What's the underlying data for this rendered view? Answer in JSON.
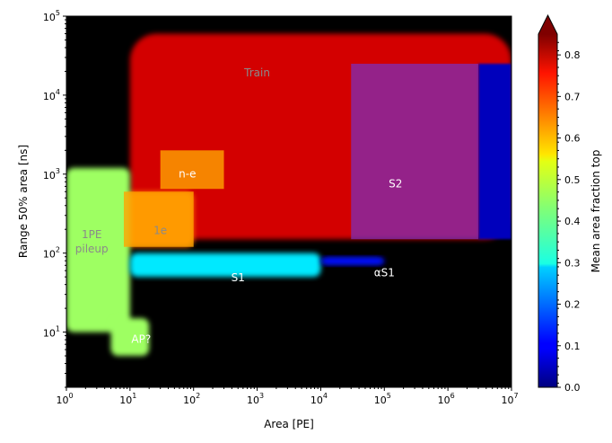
{
  "chart_data": {
    "type": "heatmap",
    "title": "",
    "xlabel": "Area [PE]",
    "ylabel": "Range 50% area [ns]",
    "xscale": "log",
    "yscale": "log",
    "xlim": [
      1,
      10000000
    ],
    "ylim": [
      2,
      100000
    ],
    "x_ticks": [
      {
        "value": 1,
        "base": "10",
        "exp": "0"
      },
      {
        "value": 10,
        "base": "10",
        "exp": "1"
      },
      {
        "value": 100,
        "base": "10",
        "exp": "2"
      },
      {
        "value": 1000,
        "base": "10",
        "exp": "3"
      },
      {
        "value": 10000,
        "base": "10",
        "exp": "4"
      },
      {
        "value": 100000,
        "base": "10",
        "exp": "5"
      },
      {
        "value": 1000000,
        "base": "10",
        "exp": "6"
      },
      {
        "value": 10000000,
        "base": "10",
        "exp": "7"
      }
    ],
    "y_ticks": [
      {
        "value": 10,
        "base": "10",
        "exp": "1"
      },
      {
        "value": 100,
        "base": "10",
        "exp": "2"
      },
      {
        "value": 1000,
        "base": "10",
        "exp": "3"
      },
      {
        "value": 10000,
        "base": "10",
        "exp": "4"
      },
      {
        "value": 100000,
        "base": "10",
        "exp": "5"
      }
    ],
    "grid": false,
    "background_color": "#000000",
    "colorbar": {
      "label": "Mean area fraction top",
      "colormap": "jet",
      "range": [
        0.0,
        0.85
      ],
      "extend": "max",
      "ticks": [
        "0.0",
        "0.1",
        "0.2",
        "0.3",
        "0.4",
        "0.5",
        "0.6",
        "0.7",
        "0.8"
      ]
    },
    "regions": [
      {
        "label": "Train",
        "x": [
          10,
          10000000
        ],
        "y": [
          150,
          60000
        ],
        "mean_fraction": 0.78
      },
      {
        "label": "S2",
        "x": [
          30000,
          3000000
        ],
        "y": [
          150,
          25000
        ],
        "mean_fraction": 0.1
      },
      {
        "label": "n-e",
        "x": [
          30,
          300
        ],
        "y": [
          650,
          2000
        ],
        "mean_fraction": 0.65
      },
      {
        "label": "1e",
        "x": [
          8,
          100
        ],
        "y": [
          120,
          600
        ],
        "mean_fraction": 0.65
      },
      {
        "label": "1PE pileup",
        "x": [
          1,
          10
        ],
        "y": [
          10,
          1200
        ],
        "mean_fraction": 0.45
      },
      {
        "label": "S1",
        "x": [
          10,
          10000
        ],
        "y": [
          50,
          100
        ],
        "mean_fraction": 0.3
      },
      {
        "label": "αS1",
        "x": [
          10000,
          100000
        ],
        "y": [
          70,
          90
        ],
        "mean_fraction": 0.12
      },
      {
        "label": "AP?",
        "x": [
          5,
          20
        ],
        "y": [
          5,
          15
        ],
        "mean_fraction": 0.45
      }
    ],
    "annotations": [
      {
        "text": "Train",
        "x": 1000,
        "y": 19000
      },
      {
        "text": "n-e",
        "x": 80,
        "y": 1000
      },
      {
        "text": "S2",
        "x": 150000,
        "y": 750
      },
      {
        "text": "1PE",
        "x": 2.5,
        "y": 170
      },
      {
        "text": "pileup",
        "x": 2.5,
        "y": 112
      },
      {
        "text": "1e",
        "x": 30,
        "y": 190
      },
      {
        "text": "S1",
        "x": 500,
        "y": 48
      },
      {
        "text": "αS1",
        "x": 100000,
        "y": 56
      },
      {
        "text": "AP?",
        "x": 15,
        "y": 8
      }
    ]
  },
  "colors": {
    "annotation_gray": "#8a8a8a",
    "annotation_white": "#ffffff",
    "overlay_orange": "#ffa500",
    "overlay_purple": "#7b2fbe"
  }
}
